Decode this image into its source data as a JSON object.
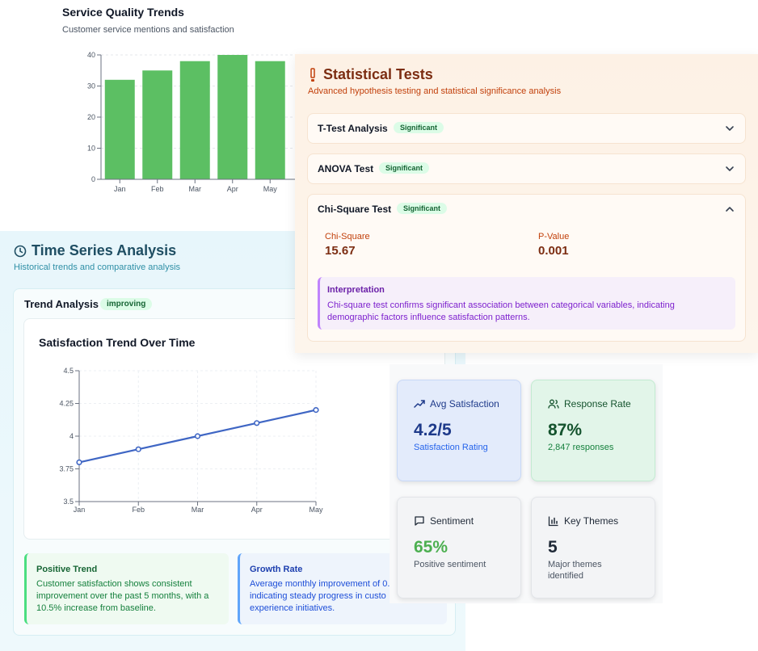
{
  "service_quality": {
    "title": "Service Quality Trends",
    "subtitle": "Customer service mentions and satisfaction"
  },
  "chart_data": [
    {
      "type": "bar",
      "title": "Service Quality Trends",
      "categories": [
        "Jan",
        "Feb",
        "Mar",
        "Apr",
        "May"
      ],
      "values": [
        32,
        35,
        38,
        40,
        38
      ],
      "ylim": [
        0,
        40
      ],
      "yticks": [
        0,
        10,
        20,
        30,
        40
      ],
      "bar_color": "#5cbf63",
      "grid": true
    },
    {
      "type": "line",
      "title": "Satisfaction Trend Over Time",
      "categories": [
        "Jan",
        "Feb",
        "Mar",
        "Apr",
        "May"
      ],
      "values": [
        3.8,
        3.9,
        4.0,
        4.1,
        4.2
      ],
      "ylim": [
        3.5,
        4.5
      ],
      "yticks": [
        "3.5",
        "3.75",
        "4",
        "4.25",
        "4.5"
      ],
      "line_color": "#3f66c4",
      "grid": true
    }
  ],
  "time_series": {
    "title": "Time Series Analysis",
    "subtitle": "Historical trends and comparative analysis",
    "trend_label": "Trend Analysis",
    "trend_badge": "improving",
    "positive": {
      "title": "Positive Trend",
      "text": "Customer satisfaction shows consistent improvement over the past 5 months, with a 10.5% increase from baseline."
    },
    "growth": {
      "title": "Growth Rate",
      "lines": [
        "Average monthly improvement of 0.",
        "indicating steady progress in custo",
        "experience initiatives."
      ]
    }
  },
  "stat_tests": {
    "title": "Statistical Tests",
    "subtitle": "Advanced hypothesis testing and statistical significance analysis",
    "items": [
      {
        "label": "T-Test Analysis",
        "badge": "Significant"
      },
      {
        "label": "ANOVA Test",
        "badge": "Significant"
      },
      {
        "label": "Chi-Square Test",
        "badge": "Significant"
      }
    ],
    "chi": {
      "stat_label": "Chi-Square",
      "stat_value": "15.67",
      "p_label": "P-Value",
      "p_value": "0.001",
      "interp_title": "Interpretation",
      "interp_text": "Chi-square test confirms significant association between categorical variables, indicating demographic factors influence satisfaction patterns."
    }
  },
  "metrics": [
    {
      "label": "Avg Satisfaction",
      "value": "4.2/5",
      "note": "Satisfaction Rating",
      "icon": "trending-up-icon",
      "accent": "#1e3a8a"
    },
    {
      "label": "Response Rate",
      "value": "87%",
      "note": "2,847 responses",
      "icon": "users-icon",
      "accent": "#14532d"
    },
    {
      "label": "Sentiment",
      "value": "65%",
      "note": "Positive sentiment",
      "icon": "message-icon",
      "accent": "#4caf50"
    },
    {
      "label": "Key Themes",
      "value": "5",
      "note": "Major themes identified",
      "icon": "bar-chart-icon",
      "accent": "#1f2937"
    }
  ]
}
